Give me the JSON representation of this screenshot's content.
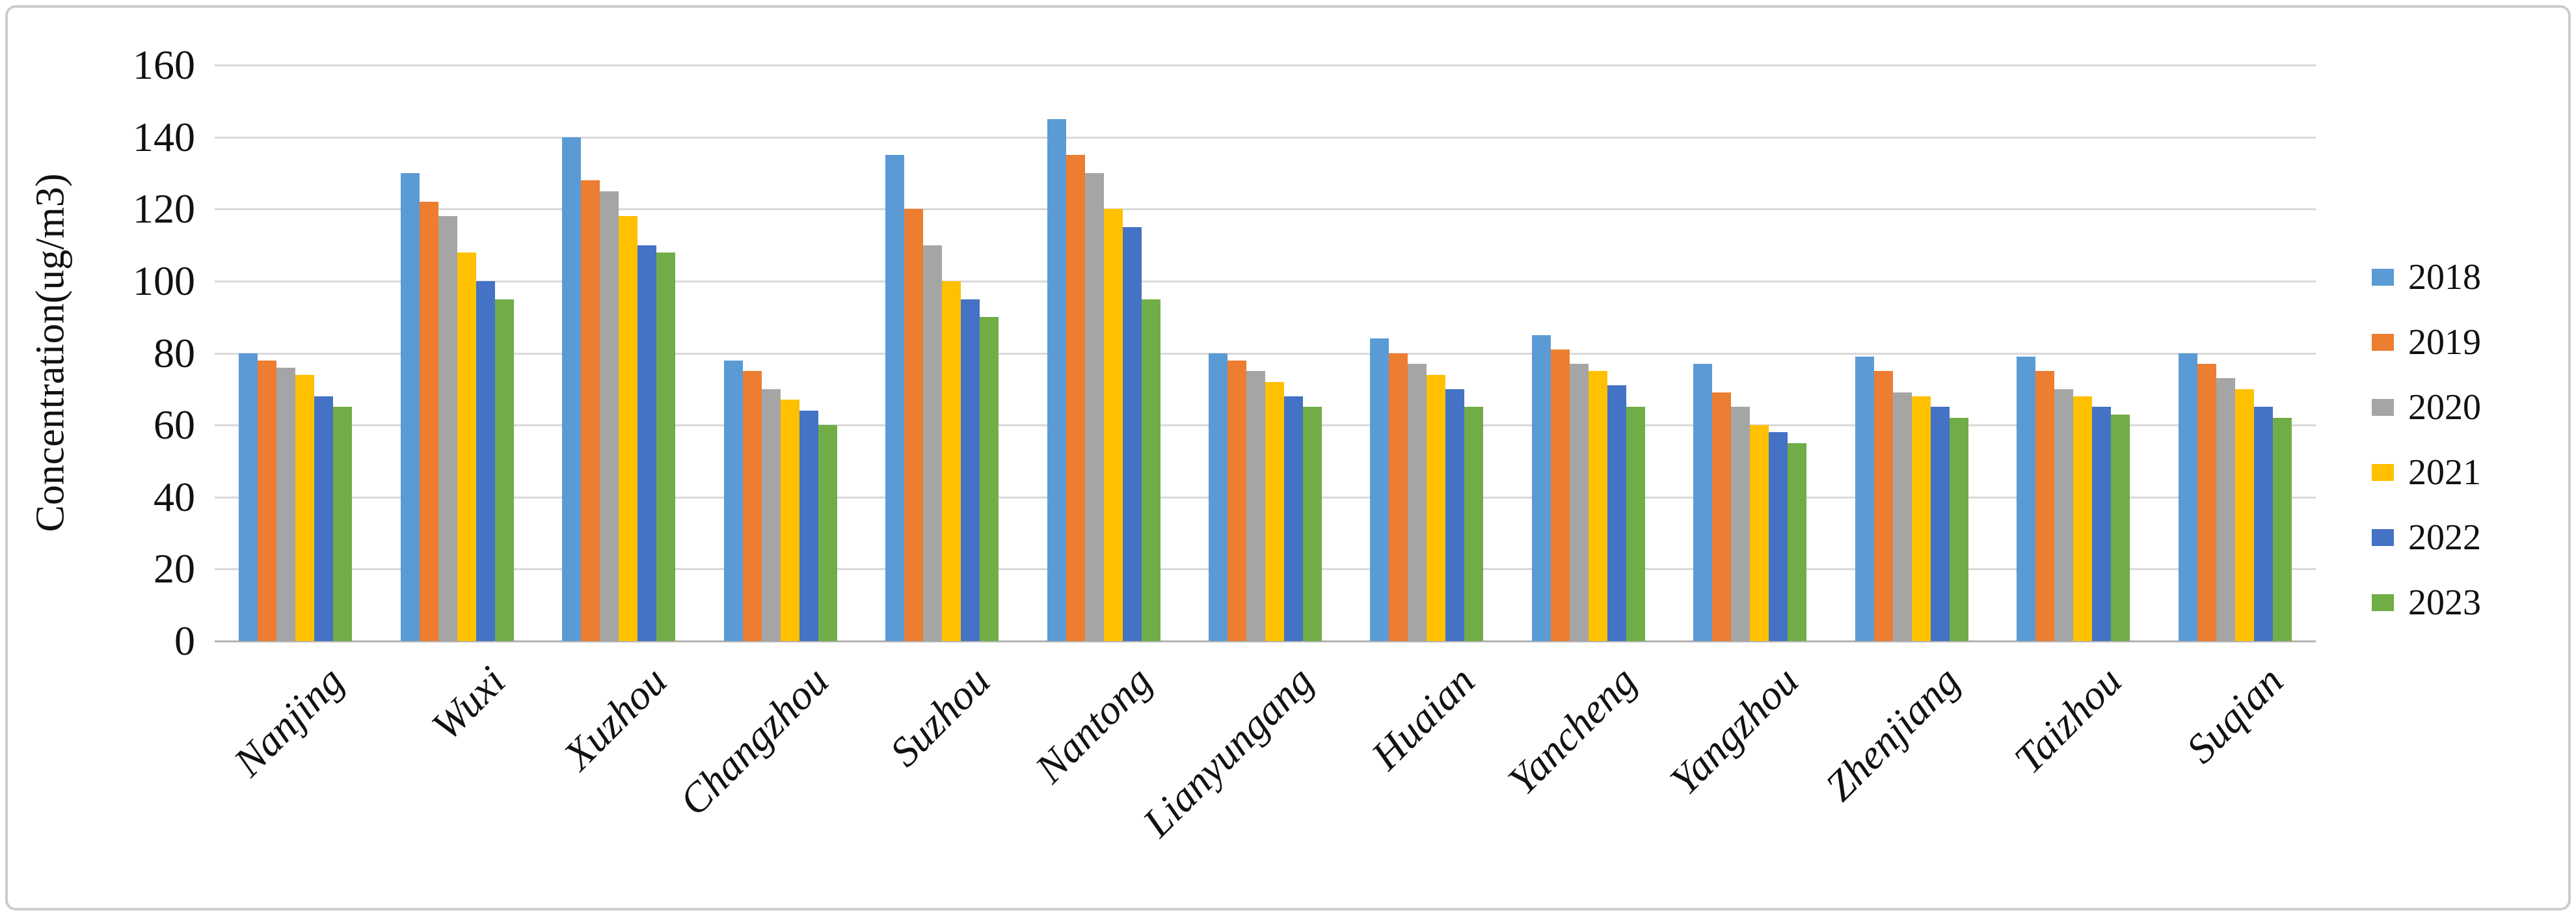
{
  "figure": {
    "background": "#ffffff",
    "border_color": "#c9cdd1"
  },
  "chart_data": {
    "type": "bar",
    "title": "",
    "ylabel": "Concentration(ug/m3)",
    "xlabel": "",
    "ylim": [
      0,
      160
    ],
    "ytick_step": 20,
    "ytick_labels": [
      "0",
      "20",
      "40",
      "60",
      "80",
      "100",
      "120",
      "140",
      "160"
    ],
    "grid": "horizontal",
    "legend_position": "right",
    "categories": [
      "Nanjing",
      "Wuxi",
      "Xuzhou",
      "Changzhou",
      "Suzhou",
      "Nantong",
      "Lianyungang",
      "Huaian",
      "Yancheng",
      "Yangzhou",
      "Zhenjiang",
      "Taizhou",
      "Suqian"
    ],
    "series": [
      {
        "name": "2018",
        "color": "#5B9BD5",
        "values": [
          80,
          130,
          140,
          78,
          135,
          145,
          80,
          84,
          85,
          77,
          79,
          79,
          80
        ]
      },
      {
        "name": "2019",
        "color": "#ED7D31",
        "values": [
          78,
          122,
          128,
          75,
          120,
          135,
          78,
          80,
          81,
          69,
          75,
          75,
          77
        ]
      },
      {
        "name": "2020",
        "color": "#A5A5A5",
        "values": [
          76,
          118,
          125,
          70,
          110,
          130,
          75,
          77,
          77,
          65,
          69,
          70,
          73
        ]
      },
      {
        "name": "2021",
        "color": "#FFC000",
        "values": [
          74,
          108,
          118,
          67,
          100,
          120,
          72,
          74,
          75,
          60,
          68,
          68,
          70
        ]
      },
      {
        "name": "2022",
        "color": "#4472C4",
        "values": [
          68,
          100,
          110,
          64,
          95,
          115,
          68,
          70,
          71,
          58,
          65,
          65,
          65
        ]
      },
      {
        "name": "2023",
        "color": "#70AD47",
        "values": [
          65,
          95,
          108,
          60,
          90,
          95,
          65,
          65,
          65,
          55,
          62,
          63,
          62
        ]
      }
    ],
    "colors": {
      "gridline": "#d9d9d9",
      "axis_line": "#b3b3b3",
      "text": "#111111"
    }
  }
}
